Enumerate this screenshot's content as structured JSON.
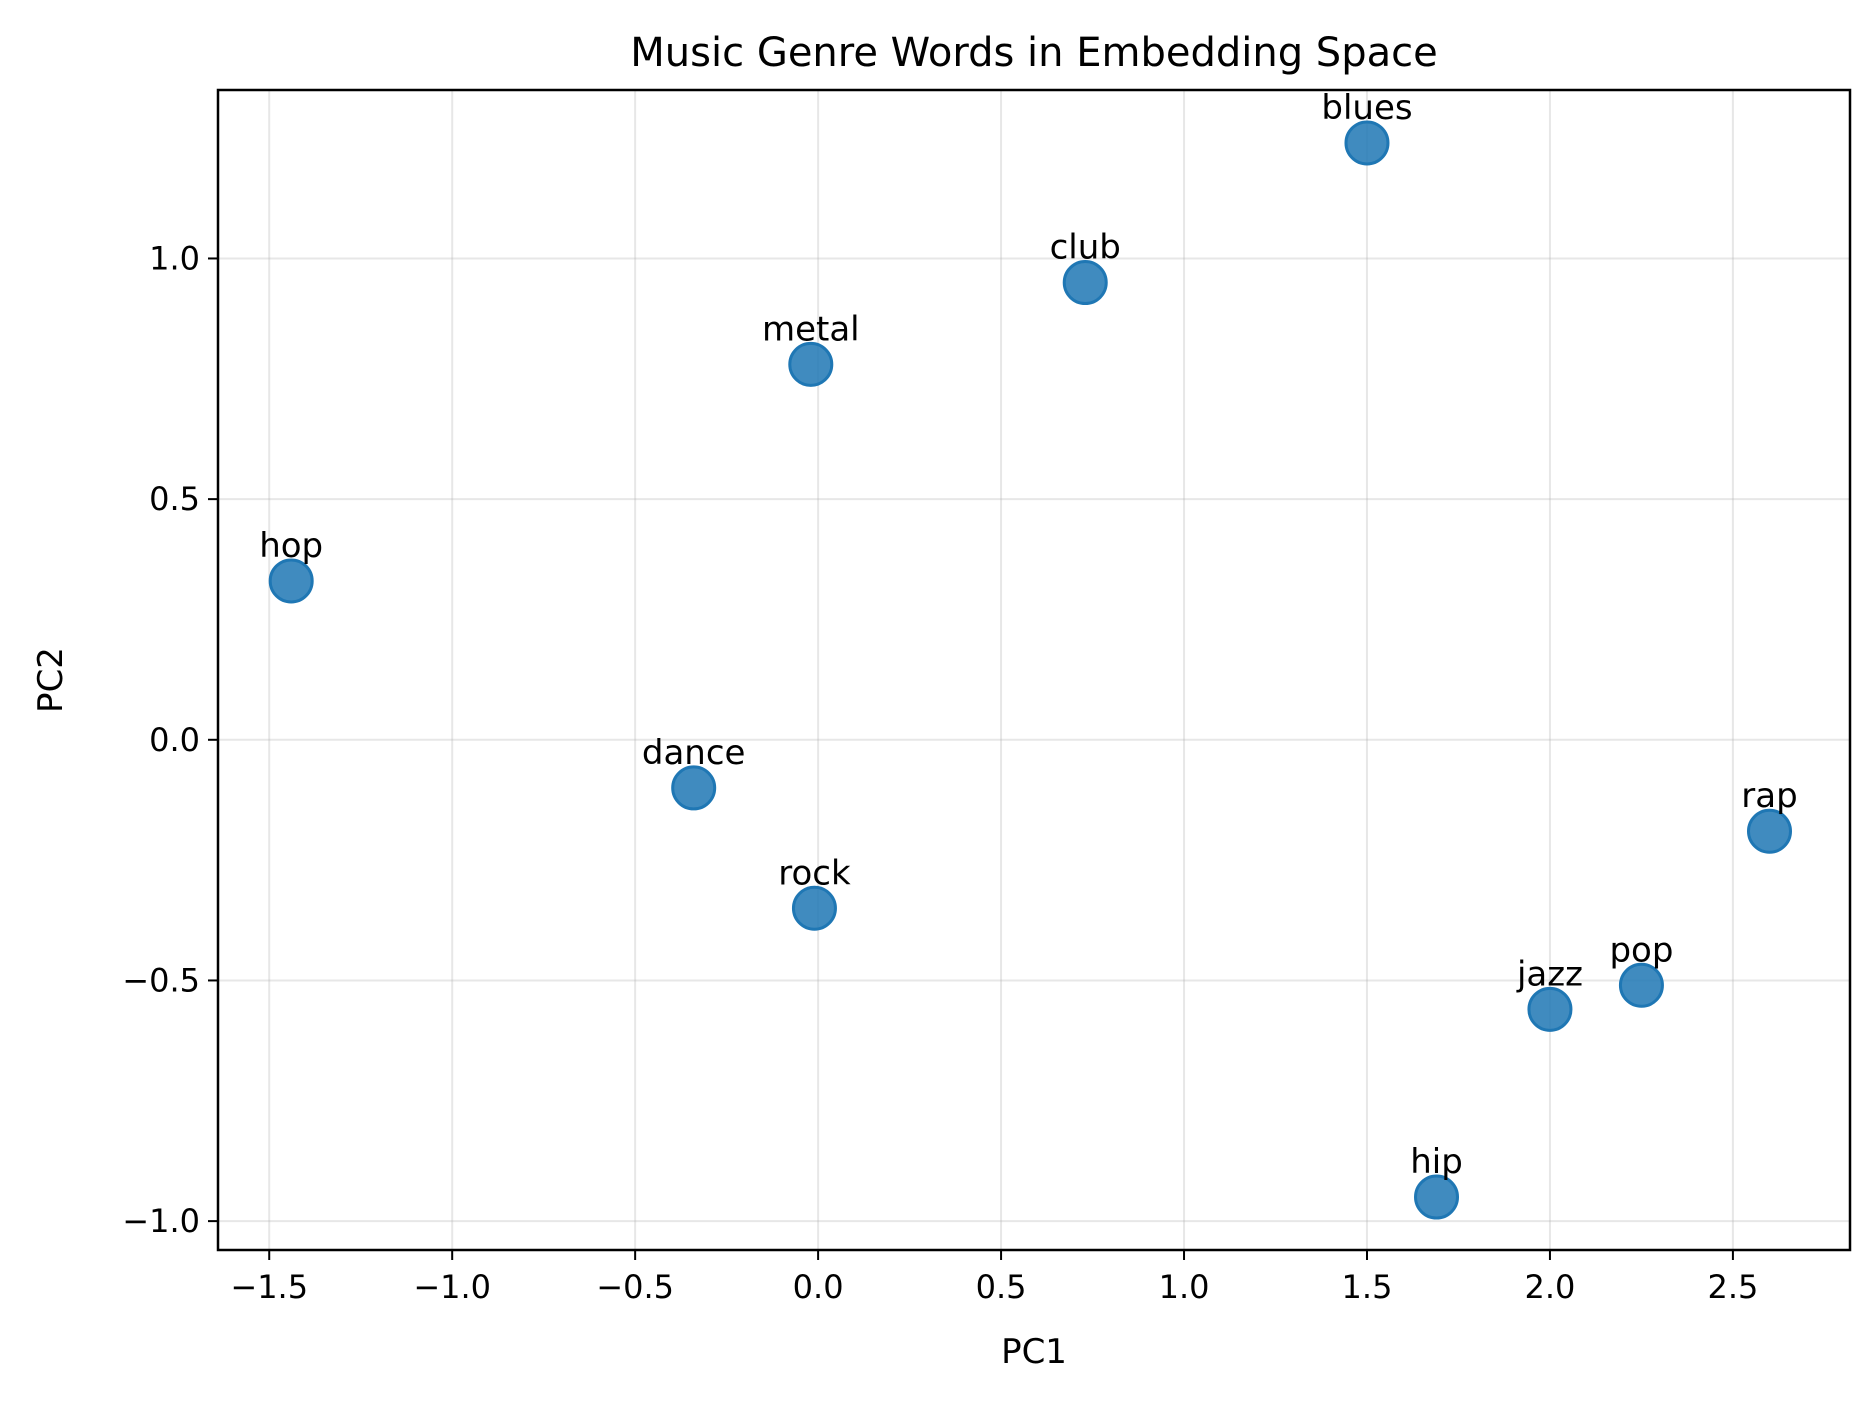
{
  "chart_data": {
    "type": "scatter",
    "title": "Music Genre Words in Embedding Space",
    "xlabel": "PC1",
    "ylabel": "PC2",
    "xlim": [
      -1.64,
      2.82
    ],
    "ylim": [
      -1.06,
      1.35
    ],
    "xticks": [
      -1.5,
      -1.0,
      -0.5,
      0.0,
      0.5,
      1.0,
      1.5,
      2.0,
      2.5
    ],
    "xtick_labels": [
      "−1.5",
      "−1.0",
      "−0.5",
      "0.0",
      "0.5",
      "1.0",
      "1.5",
      "2.0",
      "2.5"
    ],
    "yticks": [
      -1.0,
      -0.5,
      0.0,
      0.5,
      1.0
    ],
    "ytick_labels": [
      "−1.0",
      "−0.5",
      "0.0",
      "0.5",
      "1.0"
    ],
    "grid": true,
    "marker_color": "#1f77b4",
    "points": [
      {
        "label": "blues",
        "x": 1.5,
        "y": 1.24
      },
      {
        "label": "club",
        "x": 0.73,
        "y": 0.95
      },
      {
        "label": "metal",
        "x": -0.02,
        "y": 0.78
      },
      {
        "label": "hop",
        "x": -1.44,
        "y": 0.33
      },
      {
        "label": "dance",
        "x": -0.34,
        "y": -0.1
      },
      {
        "label": "rock",
        "x": -0.01,
        "y": -0.35
      },
      {
        "label": "rap",
        "x": 2.6,
        "y": -0.19
      },
      {
        "label": "pop",
        "x": 2.25,
        "y": -0.51
      },
      {
        "label": "jazz",
        "x": 2.0,
        "y": -0.56
      },
      {
        "label": "hip",
        "x": 1.69,
        "y": -0.95
      }
    ]
  }
}
